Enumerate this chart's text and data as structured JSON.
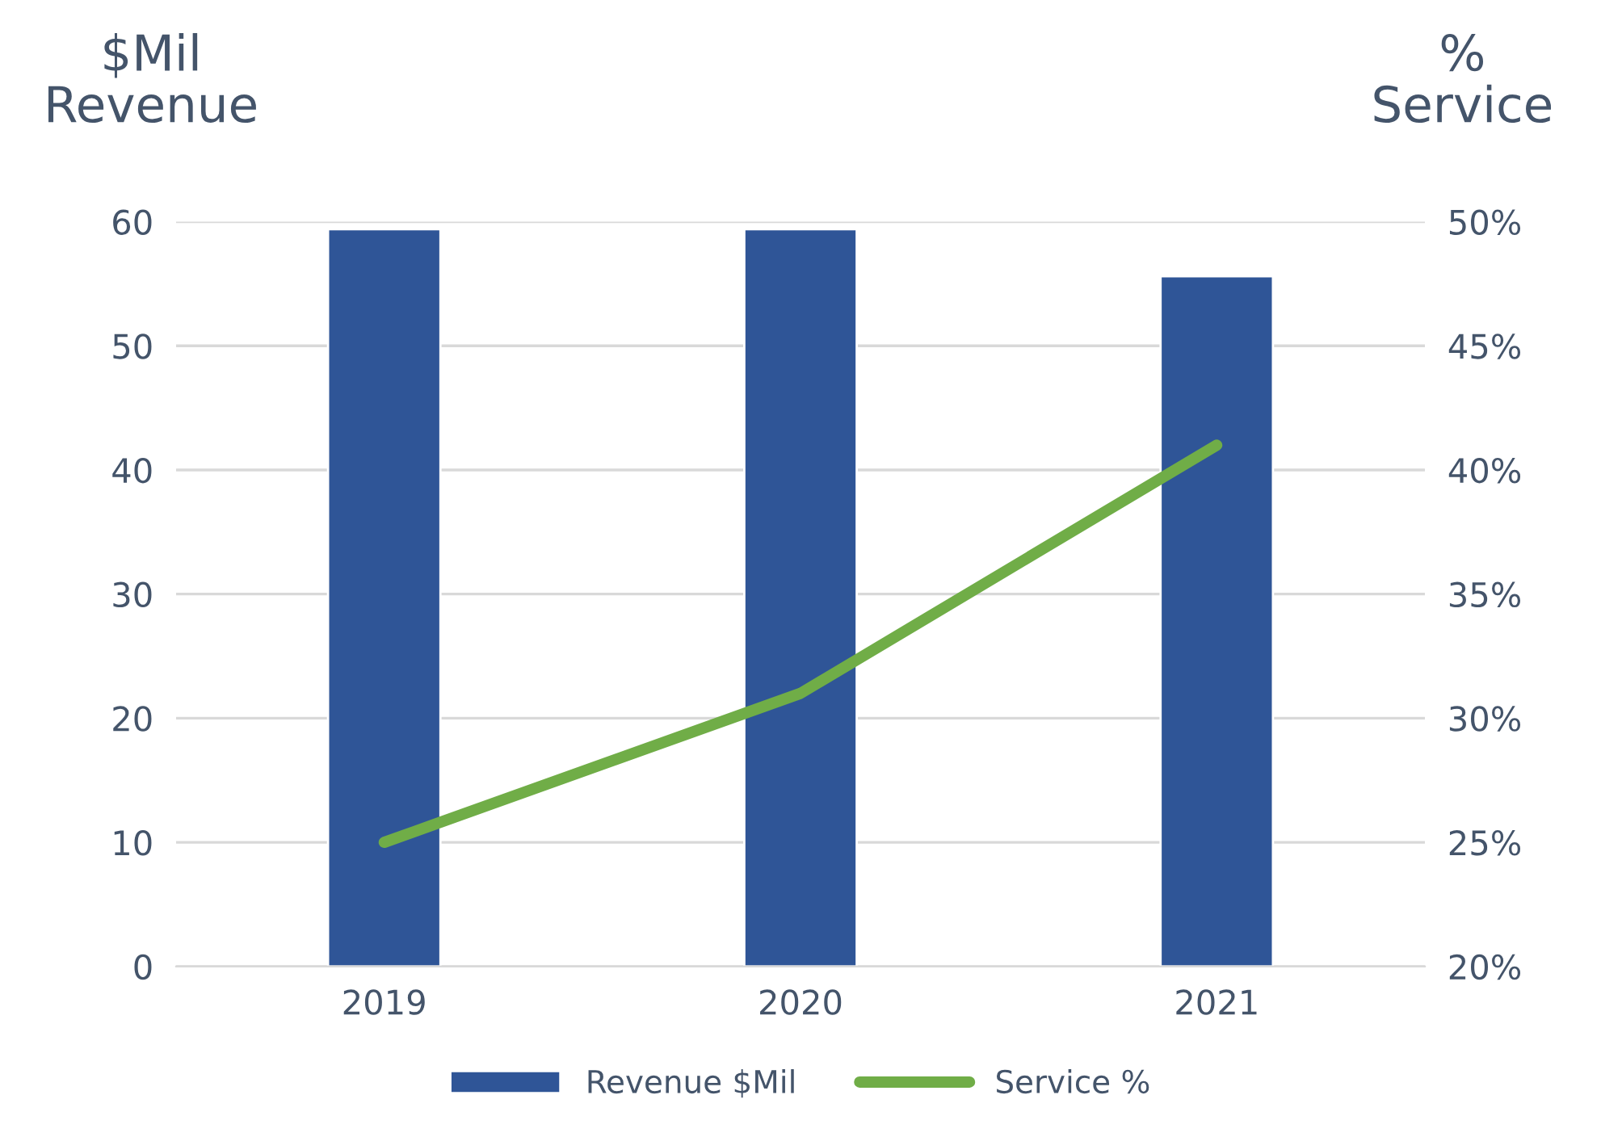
{
  "chart_data": {
    "type": "bar",
    "ylabel": "$Mil\nRevenue",
    "y2label": "%\nService",
    "categories": [
      "2019",
      "2020",
      "2021"
    ],
    "series": [
      {
        "name": "Revenue $Mil",
        "color": "#2f5597",
        "values": [
          59.4,
          59.4,
          55.6
        ]
      },
      {
        "name": "Service %",
        "type": "line",
        "axis": "y2",
        "color": "#70ad47",
        "values": [
          25,
          31,
          41
        ]
      }
    ],
    "ylim": [
      0,
      60
    ],
    "yticks": [
      0,
      10,
      20,
      30,
      40,
      50,
      60
    ],
    "y2lim": [
      20,
      50
    ],
    "y2ticks": [
      {
        "value": 20,
        "label": "20%"
      },
      {
        "value": 25,
        "label": "25%"
      },
      {
        "value": 30,
        "label": "30%"
      },
      {
        "value": 35,
        "label": "35%"
      },
      {
        "value": 40,
        "label": "40%"
      },
      {
        "value": 45,
        "label": "45%"
      },
      {
        "value": 50,
        "label": "50%"
      }
    ],
    "grid": "y",
    "legend": "bottom"
  }
}
